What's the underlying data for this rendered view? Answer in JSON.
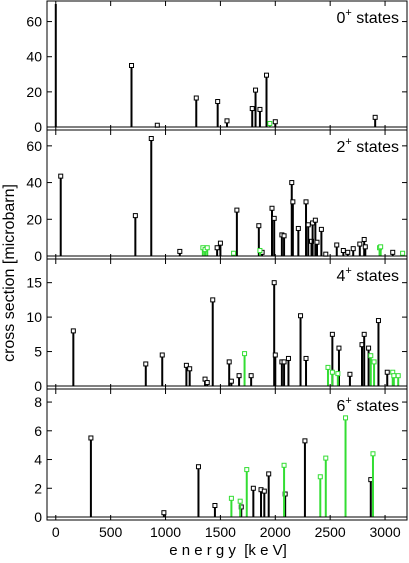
{
  "chart_data": {
    "type": "bar",
    "shared_x": {
      "xlabel": "e n e r g y  [k e V]",
      "xlim": [
        -80,
        3200
      ],
      "xticks": [
        0,
        500,
        1000,
        1500,
        2000,
        2500,
        3000
      ],
      "xtick_labels": [
        "0",
        "500",
        "1000",
        "1500",
        "2000",
        "2500",
        "3000"
      ]
    },
    "ylabel": "cross section  [microbarn]",
    "colors": {
      "series_1": "#000000",
      "series_2": "#33dd33"
    },
    "panels": [
      {
        "label_base": "0",
        "label_sup": "+",
        "label_suffix": " states",
        "ylim": [
          0,
          70
        ],
        "yticks": [
          0,
          20,
          40,
          60
        ],
        "series": [
          {
            "x": [
              0,
              690,
              925,
              1280,
              1475,
              1560,
              1790,
              1820,
              1860,
              1920,
              2000,
              2910
            ],
            "values": [
              70,
              35,
              1,
              16.5,
              14.5,
              3.5,
              10.5,
              21,
              10,
              29.5,
              3,
              5.5
            ]
          },
          {
            "x": [
              1950
            ],
            "values": [
              2
            ]
          }
        ]
      },
      {
        "label_base": "2",
        "label_sup": "+",
        "label_suffix": " states",
        "ylim": [
          0,
          67
        ],
        "yticks": [
          0,
          20,
          40,
          60
        ],
        "series": [
          {
            "x": [
              45,
              725,
              870,
              1130,
              1470,
              1500,
              1650,
              1850,
              1880,
              1970,
              1990,
              2060,
              2080,
              2150,
              2160,
              2210,
              2280,
              2300,
              2330,
              2340,
              2365,
              2380,
              2420,
              2460,
              2560,
              2620,
              2660,
              2710,
              2770,
              2810,
              2820,
              3070
            ],
            "values": [
              43.5,
              22,
              64,
              2.5,
              4.5,
              7,
              25,
              16.5,
              2,
              26,
              20.5,
              11.5,
              11,
              40,
              29.5,
              15,
              29.5,
              17,
              8,
              18,
              19.5,
              7.5,
              14.5,
              1,
              6,
              3,
              2,
              4,
              6.5,
              9,
              5,
              2
            ]
          },
          {
            "x": [
              1340,
              1360,
              1380,
              1620,
              1860,
              2950,
              2960,
              3160
            ],
            "values": [
              4.5,
              3.5,
              4.5,
              1.5,
              3,
              4.5,
              5,
              1.5
            ]
          }
        ]
      },
      {
        "label_base": "4",
        "label_sup": "+",
        "label_suffix": " states",
        "ylim": [
          0,
          18
        ],
        "yticks": [
          0,
          5,
          10,
          15
        ],
        "series": [
          {
            "x": [
              160,
              820,
              970,
              1190,
              1220,
              1360,
              1380,
              1430,
              1580,
              1600,
              1670,
              1780,
              1990,
              2000,
              2060,
              2080,
              2120,
              2230,
              2280,
              2520,
              2580,
              2680,
              2790,
              2810,
              2850,
              2940,
              3020
            ],
            "values": [
              8,
              3.2,
              4.5,
              3,
              2.5,
              1,
              0.5,
              12.5,
              3.5,
              0.7,
              1.5,
              1.5,
              15,
              4.5,
              3.5,
              3.5,
              4,
              10.2,
              4,
              7.5,
              5.5,
              1.7,
              6,
              7.5,
              5.5,
              9.5,
              2
            ]
          },
          {
            "x": [
              1720,
              2480,
              2520,
              2570,
              2870,
              2900,
              3070,
              3080,
              3120
            ],
            "values": [
              4.7,
              2.7,
              2,
              1.8,
              4.4,
              3.5,
              2,
              1.5,
              1.5
            ]
          }
        ]
      },
      {
        "label_base": "6",
        "label_sup": "+",
        "label_suffix": " states",
        "ylim": [
          0,
          8.7
        ],
        "yticks": [
          0,
          2,
          4,
          6,
          8
        ],
        "series": [
          {
            "x": [
              320,
              985,
              1300,
              1450,
              1690,
              1800,
              1870,
              1900,
              1940,
              2090,
              2270,
              2870
            ],
            "values": [
              5.5,
              0.3,
              3.5,
              0.8,
              0.7,
              2,
              1.9,
              1.8,
              3,
              1.6,
              5.3,
              2.6
            ]
          },
          {
            "x": [
              1600,
              1680,
              1740,
              2080,
              2410,
              2460,
              2640,
              2890
            ],
            "values": [
              1.3,
              1.1,
              3.3,
              3.6,
              2.8,
              4.1,
              6.9,
              4.4
            ]
          }
        ]
      }
    ]
  }
}
